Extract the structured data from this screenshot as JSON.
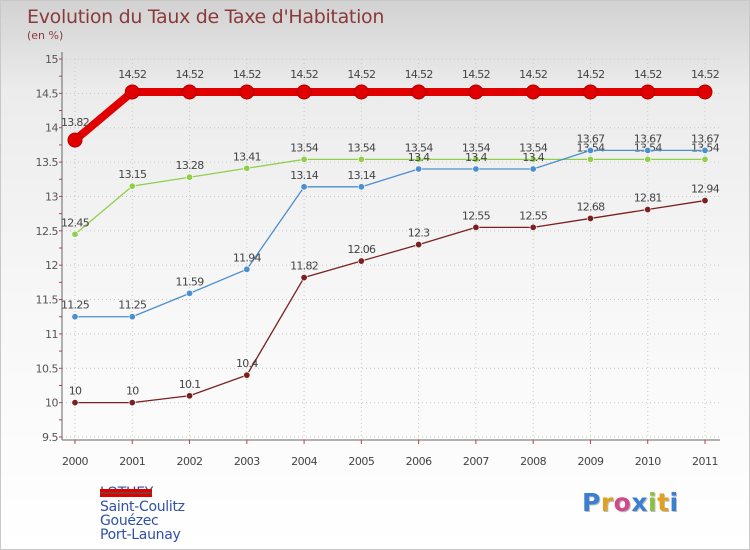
{
  "title": "Evolution du Taux de Taxe d'Habitation",
  "subtitle": "(en %)",
  "brand": {
    "letters": [
      "P",
      "r",
      "o",
      "x",
      "i",
      "t",
      "i"
    ],
    "colors": [
      "#3a7fd0",
      "#e0a020",
      "#d04a8a",
      "#3a7fd0",
      "#8cc040",
      "#e0a020",
      "#3a7fd0"
    ]
  },
  "chart_data": {
    "type": "line",
    "categories": [
      "2000",
      "2001",
      "2002",
      "2003",
      "2004",
      "2005",
      "2006",
      "2007",
      "2008",
      "2009",
      "2010",
      "2011"
    ],
    "ylim": [
      9.5,
      15
    ],
    "yticks": [
      "9.5",
      "10",
      "10.5",
      "11",
      "11.5",
      "12",
      "12.5",
      "13",
      "13.5",
      "14",
      "14.5",
      "15"
    ],
    "series": [
      {
        "name": "LOTHEY",
        "color": "#e00000",
        "values": [
          13.82,
          14.52,
          14.52,
          14.52,
          14.52,
          14.52,
          14.52,
          14.52,
          14.52,
          14.52,
          14.52,
          14.52
        ],
        "labels": [
          "13.82",
          "14.52",
          "14.52",
          "14.52",
          "14.52",
          "14.52",
          "14.52",
          "14.52",
          "14.52",
          "14.52",
          "14.52",
          "14.52"
        ]
      },
      {
        "name": "Saint-Coulitz",
        "color": "#4b8fd0",
        "values": [
          11.25,
          11.25,
          11.59,
          11.94,
          13.14,
          13.14,
          13.4,
          13.4,
          13.4,
          13.67,
          13.67,
          13.67
        ],
        "labels": [
          "11.25",
          "11.25",
          "11.59",
          "11.94",
          "13.14",
          "13.14",
          "13.4",
          "13.4",
          "13.4",
          "13.67",
          "13.67",
          "13.67"
        ]
      },
      {
        "name": "Gouézec",
        "color": "#8fd04b",
        "values": [
          12.45,
          13.15,
          13.28,
          13.41,
          13.54,
          13.54,
          13.54,
          13.54,
          13.54,
          13.54,
          13.54,
          13.54
        ],
        "labels": [
          "12.45",
          "13.15",
          "13.28",
          "13.41",
          "13.54",
          "13.54",
          "13.54",
          "13.54",
          "13.54",
          "13.54",
          "13.54",
          "13.54"
        ]
      },
      {
        "name": "Port-Launay",
        "color": "#7a2020",
        "values": [
          10,
          10,
          10.1,
          10.4,
          11.82,
          12.06,
          12.3,
          12.55,
          12.55,
          12.68,
          12.81,
          12.94
        ],
        "labels": [
          "10",
          "10",
          "10.1",
          "10.4",
          "11.82",
          "12.06",
          "12.3",
          "12.55",
          "12.55",
          "12.68",
          "12.81",
          "12.94"
        ]
      }
    ]
  }
}
